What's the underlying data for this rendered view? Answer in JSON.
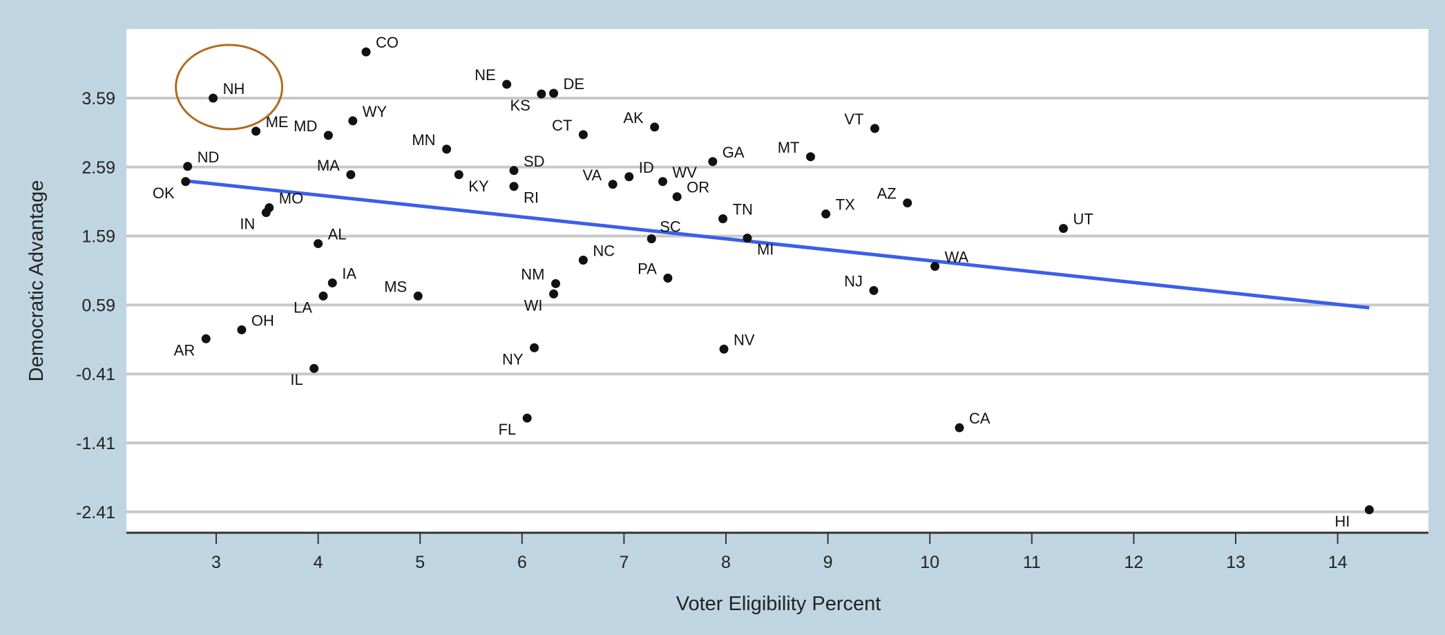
{
  "chart_data": {
    "type": "scatter",
    "title": "",
    "xlabel": "Voter Eligibility Percent",
    "ylabel": "Democratic Advantage",
    "xlim": [
      2.2,
      15.0
    ],
    "ylim": [
      -2.75,
      4.7
    ],
    "x_ticks": [
      3,
      4,
      5,
      6,
      7,
      8,
      9,
      10,
      11,
      12,
      13,
      14
    ],
    "y_ticks": [
      3.59,
      2.59,
      1.59,
      0.59,
      -0.41,
      -1.41,
      -2.41
    ],
    "grid": "horizontal",
    "legend": "none",
    "points": [
      {
        "label": "CO",
        "x": 4.47,
        "y": 4.26
      },
      {
        "label": "NE",
        "x": 5.85,
        "y": 3.79
      },
      {
        "label": "KS",
        "x": 6.19,
        "y": 3.65
      },
      {
        "label": "DE",
        "x": 6.31,
        "y": 3.66
      },
      {
        "label": "NH",
        "x": 2.97,
        "y": 3.59
      },
      {
        "label": "ME",
        "x": 3.39,
        "y": 3.11
      },
      {
        "label": "WY",
        "x": 4.34,
        "y": 3.26
      },
      {
        "label": "MD",
        "x": 4.1,
        "y": 3.05
      },
      {
        "label": "AK",
        "x": 7.3,
        "y": 3.17
      },
      {
        "label": "VT",
        "x": 9.46,
        "y": 3.15
      },
      {
        "label": "CT",
        "x": 6.6,
        "y": 3.06
      },
      {
        "label": "MN",
        "x": 5.26,
        "y": 2.85
      },
      {
        "label": "MT",
        "x": 8.83,
        "y": 2.74
      },
      {
        "label": "ND",
        "x": 2.72,
        "y": 2.6
      },
      {
        "label": "SD",
        "x": 5.92,
        "y": 2.54
      },
      {
        "label": "GA",
        "x": 7.87,
        "y": 2.67
      },
      {
        "label": "MA",
        "x": 4.32,
        "y": 2.48
      },
      {
        "label": "KY",
        "x": 5.38,
        "y": 2.48
      },
      {
        "label": "ID",
        "x": 7.05,
        "y": 2.45
      },
      {
        "label": "WV",
        "x": 7.38,
        "y": 2.38
      },
      {
        "label": "OK",
        "x": 2.7,
        "y": 2.38
      },
      {
        "label": "VA",
        "x": 6.89,
        "y": 2.34
      },
      {
        "label": "RI",
        "x": 5.92,
        "y": 2.31
      },
      {
        "label": "OR",
        "x": 7.52,
        "y": 2.16
      },
      {
        "label": "AZ",
        "x": 9.78,
        "y": 2.07
      },
      {
        "label": "MO",
        "x": 3.52,
        "y": 2.0
      },
      {
        "label": "IN",
        "x": 3.49,
        "y": 1.93
      },
      {
        "label": "TX",
        "x": 8.98,
        "y": 1.91
      },
      {
        "label": "TN",
        "x": 7.97,
        "y": 1.84
      },
      {
        "label": "UT",
        "x": 11.31,
        "y": 1.7
      },
      {
        "label": "SC",
        "x": 7.27,
        "y": 1.55
      },
      {
        "label": "MI",
        "x": 8.21,
        "y": 1.56
      },
      {
        "label": "AL",
        "x": 4.0,
        "y": 1.48
      },
      {
        "label": "NC",
        "x": 6.6,
        "y": 1.24
      },
      {
        "label": "WA",
        "x": 10.05,
        "y": 1.15
      },
      {
        "label": "PA",
        "x": 7.43,
        "y": 0.98
      },
      {
        "label": "IA",
        "x": 4.14,
        "y": 0.91
      },
      {
        "label": "NM",
        "x": 6.33,
        "y": 0.9
      },
      {
        "label": "NJ",
        "x": 9.45,
        "y": 0.8
      },
      {
        "label": "WI",
        "x": 6.31,
        "y": 0.75
      },
      {
        "label": "LA",
        "x": 4.05,
        "y": 0.72
      },
      {
        "label": "MS",
        "x": 4.98,
        "y": 0.72
      },
      {
        "label": "OH",
        "x": 3.25,
        "y": 0.23
      },
      {
        "label": "AR",
        "x": 2.9,
        "y": 0.1
      },
      {
        "label": "NY",
        "x": 6.12,
        "y": -0.03
      },
      {
        "label": "NV",
        "x": 7.98,
        "y": -0.05
      },
      {
        "label": "IL",
        "x": 3.96,
        "y": -0.33
      },
      {
        "label": "FL",
        "x": 6.05,
        "y": -1.05
      },
      {
        "label": "CA",
        "x": 10.29,
        "y": -1.19
      },
      {
        "label": "HI",
        "x": 14.31,
        "y": -2.38
      }
    ],
    "trendline": {
      "x": [
        2.7,
        14.31
      ],
      "y": [
        2.39,
        0.55
      ],
      "color": "#3a5fe8"
    },
    "highlight": {
      "label": "NH",
      "color": "#b06a1e"
    },
    "colors": {
      "plot_bg": "#ffffff",
      "page_bg": "#c0d5e2",
      "grid": "#c8c8c8",
      "axis": "#333333",
      "point": "#111111"
    }
  }
}
